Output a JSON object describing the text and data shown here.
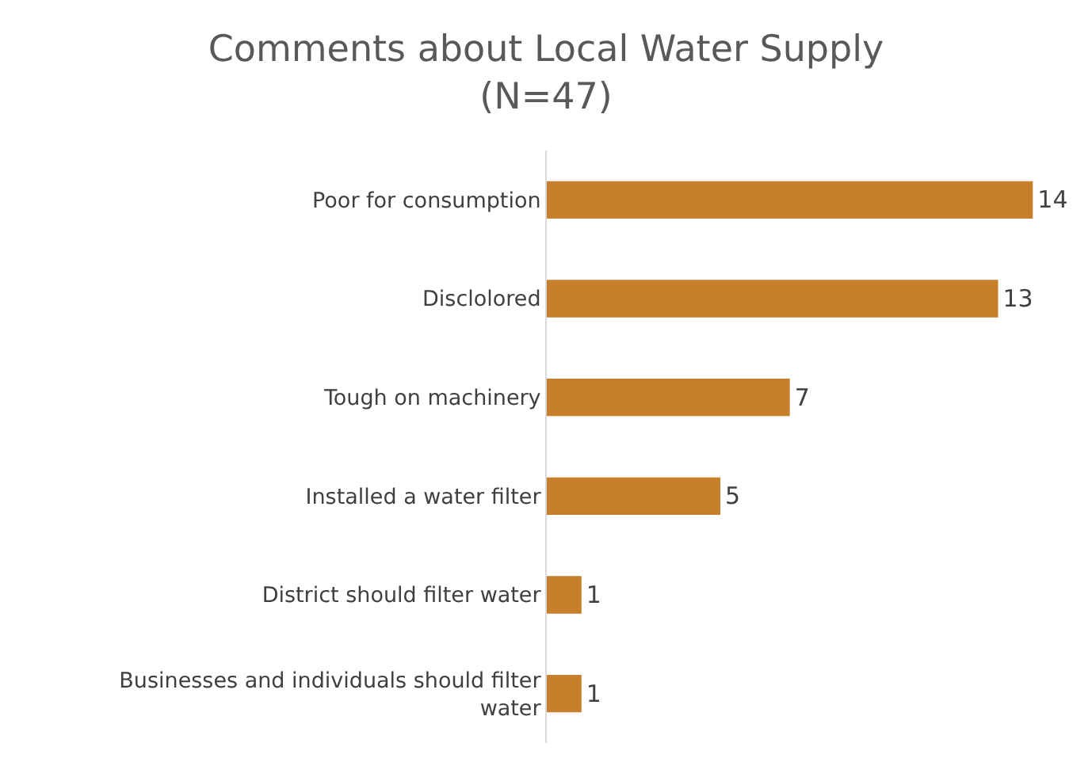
{
  "chart_data": {
    "type": "bar",
    "orientation": "horizontal",
    "title": "Comments about Local Water Supply\n(N=47)",
    "categories": [
      "Poor for consumption",
      "Disclolored",
      "Tough on machinery",
      "Installed a water filter",
      "District should filter water",
      "Businesses and individuals should filter water"
    ],
    "values": [
      14,
      13,
      7,
      5,
      1,
      1
    ],
    "color": "#c87f2c",
    "data_labels": true,
    "tick_labels": "y"
  }
}
